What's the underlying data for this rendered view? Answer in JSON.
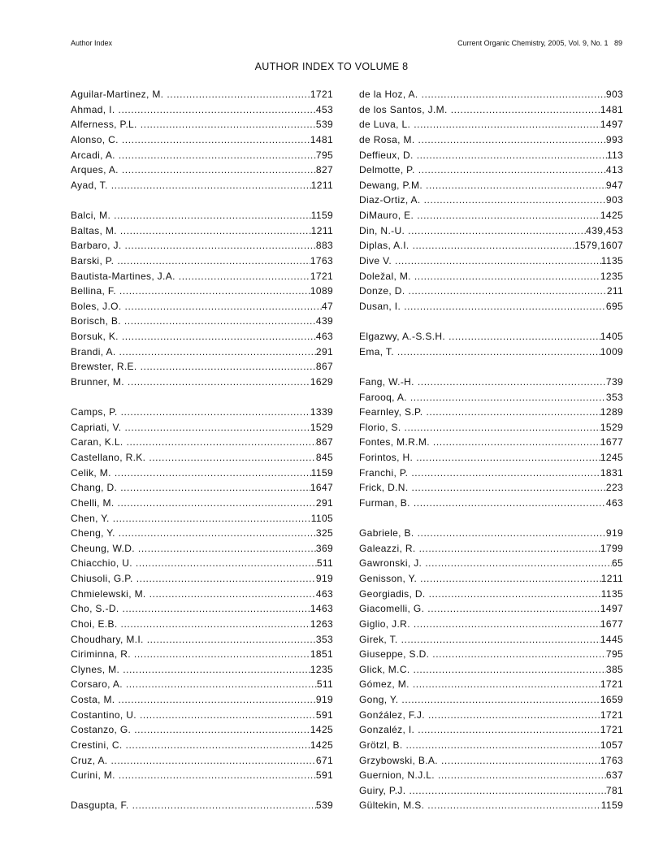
{
  "header": {
    "left": "Author Index",
    "right": "Current Organic Chemistry, 2005, Vol. 9, No. 1   89"
  },
  "title": "AUTHOR INDEX TO VOLUME 8",
  "columns": [
    [
      {
        "name": "Aguilar-Martinez, M.",
        "pages": "1721"
      },
      {
        "name": "Ahmad, I.",
        "pages": "453"
      },
      {
        "name": "Alferness, P.L.",
        "pages": "539"
      },
      {
        "name": "Alonso, C.",
        "pages": "1481"
      },
      {
        "name": "Arcadi, A.",
        "pages": "795"
      },
      {
        "name": "Arques, A.",
        "pages": "827"
      },
      {
        "name": "Ayad, T.",
        "pages": "1211"
      },
      {},
      {
        "name": "Balci, M.",
        "pages": "1159"
      },
      {
        "name": "Baltas, M.",
        "pages": "1211"
      },
      {
        "name": "Barbaro, J.",
        "pages": "883"
      },
      {
        "name": "Barski, P.",
        "pages": "1763"
      },
      {
        "name": "Bautista-Martines, J.A.",
        "pages": "1721"
      },
      {
        "name": "Bellina, F.",
        "pages": "1089"
      },
      {
        "name": "Boles, J.O.",
        "pages": "47"
      },
      {
        "name": "Borisch, B.",
        "pages": "439"
      },
      {
        "name": "Borsuk, K.",
        "pages": "463"
      },
      {
        "name": "Brandi, A.",
        "pages": "291"
      },
      {
        "name": "Brewster, R.E.",
        "pages": "867"
      },
      {
        "name": "Brunner, M.",
        "pages": "1629"
      },
      {},
      {
        "name": "Camps, P.",
        "pages": "1339"
      },
      {
        "name": "Capriati, V.",
        "pages": "1529"
      },
      {
        "name": "Caran, K.L.",
        "pages": "867"
      },
      {
        "name": "Castellano, R.K.",
        "pages": "845"
      },
      {
        "name": "Celik, M.",
        "pages": "1159"
      },
      {
        "name": "Chang, D.",
        "pages": "1647"
      },
      {
        "name": "Chelli, M.",
        "pages": "291"
      },
      {
        "name": "Chen, Y.",
        "pages": "1105"
      },
      {
        "name": "Cheng, Y.",
        "pages": "325"
      },
      {
        "name": "Cheung, W.D.",
        "pages": "369"
      },
      {
        "name": "Chiacchio, U.",
        "pages": "511"
      },
      {
        "name": "Chiusoli, G.P.",
        "pages": "919"
      },
      {
        "name": "Chmielewski, M.",
        "pages": "463"
      },
      {
        "name": "Cho, S.-D.",
        "pages": "1463"
      },
      {
        "name": "Choi, E.B.",
        "pages": "1263"
      },
      {
        "name": "Choudhary, M.I.",
        "pages": "353"
      },
      {
        "name": "Ciriminna, R.",
        "pages": "1851"
      },
      {
        "name": "Clynes, M.",
        "pages": "1235"
      },
      {
        "name": "Corsaro, A.",
        "pages": "511"
      },
      {
        "name": "Costa, M.",
        "pages": "919"
      },
      {
        "name": "Costantino, U.",
        "pages": "591"
      },
      {
        "name": "Costanzo, G.",
        "pages": "1425"
      },
      {
        "name": "Crestini, C.",
        "pages": "1425"
      },
      {
        "name": "Cruz, A.",
        "pages": "671"
      },
      {
        "name": "Curini, M.",
        "pages": "591"
      },
      {},
      {
        "name": "Dasgupta, F.",
        "pages": "539"
      }
    ],
    [
      {
        "name": "de la Hoz, A.",
        "pages": "903"
      },
      {
        "name": "de los Santos, J.M.",
        "pages": "1481"
      },
      {
        "name": "de Luva, L.",
        "pages": "1497"
      },
      {
        "name": "de Rosa, M.",
        "pages": "993"
      },
      {
        "name": "Deffieux, D.",
        "pages": "113"
      },
      {
        "name": "Delmotte, P.",
        "pages": "413"
      },
      {
        "name": "Dewang, P.M.",
        "pages": "947"
      },
      {
        "name": "Diaz-Ortiz, A.",
        "pages": "903"
      },
      {
        "name": "DiMauro, E.",
        "pages": "1425"
      },
      {
        "name": "Din, N.-U.",
        "pages": "439,453"
      },
      {
        "name": "Diplas, A.I.",
        "pages": "1579,1607"
      },
      {
        "name": "Dive V.",
        "pages": "1135"
      },
      {
        "name": "Doležal, M.",
        "pages": "1235"
      },
      {
        "name": "Donze, D.",
        "pages": "211"
      },
      {
        "name": "Dusan, I.",
        "pages": "695"
      },
      {},
      {
        "name": "Elgazwy, A.-S.S.H.",
        "pages": "1405"
      },
      {
        "name": "Ema, T.",
        "pages": "1009"
      },
      {},
      {
        "name": "Fang, W.-H.",
        "pages": "739"
      },
      {
        "name": "Farooq, A.",
        "pages": "353"
      },
      {
        "name": "Fearnley, S.P.",
        "pages": "1289"
      },
      {
        "name": "Florio, S.",
        "pages": "1529"
      },
      {
        "name": "Fontes, M.R.M.",
        "pages": "1677"
      },
      {
        "name": "Forintos, H.",
        "pages": "1245"
      },
      {
        "name": "Franchi, P.",
        "pages": "1831"
      },
      {
        "name": "Frick, D.N.",
        "pages": "223"
      },
      {
        "name": "Furman, B.",
        "pages": "463"
      },
      {},
      {
        "name": "Gabriele, B.",
        "pages": "919"
      },
      {
        "name": "Galeazzi, R.",
        "pages": "1799"
      },
      {
        "name": "Gawronski, J.",
        "pages": "65"
      },
      {
        "name": "Genisson, Y.",
        "pages": "1211"
      },
      {
        "name": "Georgiadis, D.",
        "pages": "1135"
      },
      {
        "name": "Giacomelli, G.",
        "pages": "1497"
      },
      {
        "name": "Giglio, J.R.",
        "pages": "1677"
      },
      {
        "name": "Girek, T.",
        "pages": "1445"
      },
      {
        "name": "Giuseppe, S.D.",
        "pages": "795"
      },
      {
        "name": "Glick, M.C.",
        "pages": "385"
      },
      {
        "name": "Gómez, M.",
        "pages": "1721"
      },
      {
        "name": "Gong, Y.",
        "pages": "1659"
      },
      {
        "name": "Gonźález, F.J.",
        "pages": "1721"
      },
      {
        "name": "Gonzaléz, I.",
        "pages": "1721"
      },
      {
        "name": "Grötzl, B.",
        "pages": "1057"
      },
      {
        "name": "Grzybowski, B.A.",
        "pages": "1763"
      },
      {
        "name": "Guernion, N.J.L.",
        "pages": "637"
      },
      {
        "name": "Guiry, P.J.",
        "pages": "781"
      },
      {
        "name": "Gültekin, M.S.",
        "pages": "1159"
      }
    ]
  ]
}
